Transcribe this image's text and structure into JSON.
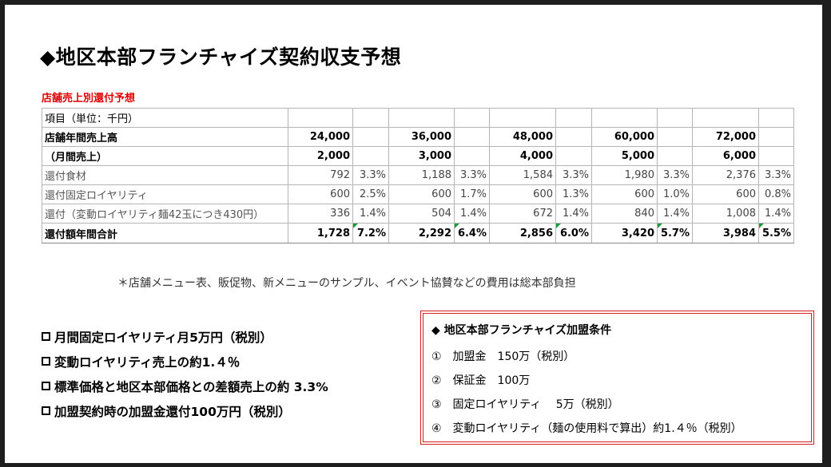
{
  "title": "◆地区本部フランチャイズ契約収支予想",
  "table_title": "店舗売上別還付予想",
  "table": {
    "rows": [
      {
        "label": "項目（単位：千円）",
        "cells": [
          "",
          "",
          "",
          "",
          "",
          "",
          "",
          "",
          "",
          ""
        ]
      },
      {
        "label": "店舗年間売上高",
        "cells": [
          "24,000",
          "",
          "36,000",
          "",
          "48,000",
          "",
          "60,000",
          "",
          "72,000",
          ""
        ]
      },
      {
        "label": "（月間売上）",
        "cells": [
          "2,000",
          "",
          "3,000",
          "",
          "4,000",
          "",
          "5,000",
          "",
          "6,000",
          ""
        ]
      },
      {
        "label": "還付食材",
        "cells": [
          "792",
          "3.3%",
          "1,188",
          "3.3%",
          "1,584",
          "3.3%",
          "1,980",
          "3.3%",
          "2,376",
          "3.3%"
        ]
      },
      {
        "label": "還付固定ロイヤリティ",
        "cells": [
          "600",
          "2.5%",
          "600",
          "1.7%",
          "600",
          "1.3%",
          "600",
          "1.0%",
          "600",
          "0.8%"
        ]
      },
      {
        "label": "還付（変動ロイヤリティ麺42玉につき430円）",
        "cells": [
          "336",
          "1.4%",
          "504",
          "1.4%",
          "672",
          "1.4%",
          "840",
          "1.4%",
          "1,008",
          "1.4%"
        ]
      },
      {
        "label": "還付額年間合計",
        "cells": [
          "1,728",
          "7.2%",
          "2,292",
          "6.4%",
          "2,856",
          "6.0%",
          "3,420",
          "5.7%",
          "3,984",
          "5.5%"
        ]
      }
    ]
  },
  "note": "＊店舗メニュー表、販促物、新メニューのサンプル、イベント協賛などの費用は総本部負担",
  "bullets": [
    "月間固定ロイヤリティ月5万円（税別）",
    "変動ロイヤリティ売上の約1.４％",
    "標準価格と地区本部価格との差額売上の約 3.3%",
    "加盟契約時の加盟金還付100万円（税別）"
  ],
  "conditions": {
    "heading": "◆ 地区本部フランチャイズ加盟条件",
    "items": [
      "①　加盟金　150万（税別）",
      "②　保証金　100万",
      "③　固定ロイヤリティ　 5万（税別）",
      "④　変動ロイヤリティ（麺の使用料で算出）約1.４％（税別）"
    ]
  }
}
